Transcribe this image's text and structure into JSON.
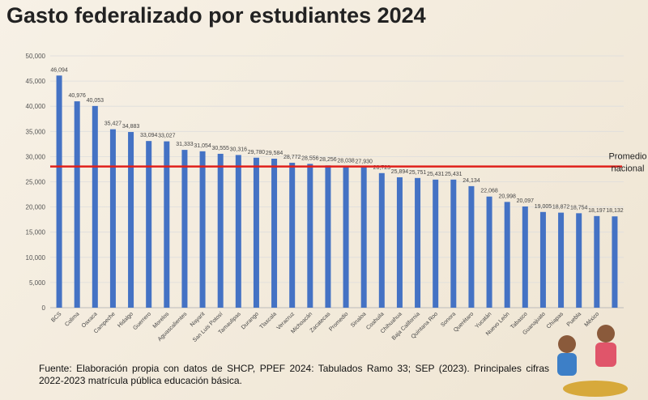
{
  "chart_data": {
    "type": "bar",
    "title": "Gasto federalizado por estudiantes 2024",
    "categories": [
      "BCS",
      "Colima",
      "Oaxaca",
      "Campeche",
      "Hidalgo",
      "Guerrero",
      "Morelos",
      "Aguascalientes",
      "Nayarit",
      "San Luis Potosí",
      "Tamaulipas",
      "Durango",
      "Tlaxcala",
      "Veracruz",
      "Michoacán",
      "Zacatecas",
      "Promedio",
      "Sinaloa",
      "Coahuila",
      "Chihuahua",
      "Baja California",
      "Quintana Roo",
      "Sonora",
      "Querétaro",
      "Yucatán",
      "Nuevo León",
      "Tabasco",
      "Guanajuato",
      "Chiapas",
      "Puebla",
      "México",
      null
    ],
    "values": [
      46094,
      40976,
      40053,
      35427,
      34883,
      33094,
      33027,
      31333,
      31054,
      30555,
      30316,
      29780,
      29584,
      28772,
      28556,
      28256,
      28038,
      27930,
      26723,
      25894,
      25751,
      25431,
      25431,
      24134,
      22068,
      20998,
      20097,
      19005,
      18872,
      18754,
      18197,
      18132
    ],
    "value_labels": [
      "46,094",
      "40,976",
      "40,053",
      "35,427",
      "34,883",
      "33,094",
      "33,027",
      "31,333",
      "31,054",
      "30,555",
      "30,316",
      "29,780",
      "29,584",
      "28,772",
      "28,556",
      "28,256",
      "28,038",
      "27,930",
      "26,723",
      "25,894",
      "25,751",
      "25,431",
      "25,431",
      "24,134",
      "22,068",
      "20,998",
      "20,097",
      "19,005",
      "18,872",
      "18,754",
      "18,197",
      "18,132"
    ],
    "color": "#4472c4",
    "ylim": [
      0,
      50000
    ],
    "yticks": [
      0,
      {
        "value": 5000,
        "label": "5,000"
      },
      {
        "value": 10000,
        "label": "10,000"
      },
      {
        "value": 15000,
        "label": "15,000"
      },
      {
        "value": 20000,
        "label": "20,000"
      },
      {
        "value": 25000,
        "label": "25,000"
      },
      {
        "value": 30000,
        "label": "30,000"
      },
      {
        "value": 35000,
        "label": "35,000"
      },
      {
        "value": 40000,
        "label": "40,000"
      },
      {
        "value": 45000,
        "label": "45,000"
      },
      {
        "value": 50000,
        "label": "50,000"
      }
    ],
    "grid": true,
    "average_label": "Promedio nacional",
    "average_color": "#e0201b",
    "source": "Fuente: Elaboración propia con datos de SHCP, PPEF 2024: Tabulados Ramo 33; SEP (2023). Principales cifras 2022-2023 matrícula pública educación básica."
  }
}
